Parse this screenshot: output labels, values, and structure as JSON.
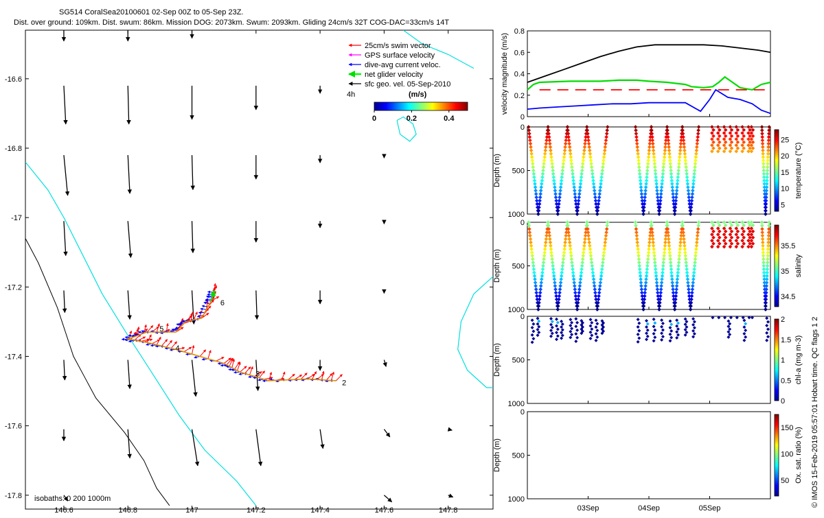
{
  "header": {
    "title_line1": "SG514 CoralSea20100601 02-Sep 00Z to 05-Sep 23Z.",
    "title_line2": "Dist. over ground: 109km. Dist. swum: 86km. Mission DOG: 2073km. Swum: 2093km. Gliding 24cm/s 32T COG-DAC=33cm/s 14T"
  },
  "side_label": "© IMOS 15-Feb-2019 05:57:01 Hobart time. QC flags 1  2",
  "chart_data": [
    {
      "type": "scatter",
      "role": "map",
      "x_ticks": [
        "146.6",
        "146.8",
        "147",
        "147.2",
        "147.4",
        "147.6",
        "147.8"
      ],
      "y_ticks": [
        "-16.6",
        "-16.8",
        "-17",
        "-17.2",
        "-17.4",
        "-17.6",
        "-17.8"
      ],
      "xlim": [
        146.48,
        147.94
      ],
      "ylim": [
        -17.84,
        -16.46
      ],
      "legend": [
        {
          "label": "25cm/s swim vector",
          "color": "#ff0000"
        },
        {
          "label": "GPS surface velocity",
          "color": "#ff00ff"
        },
        {
          "label": "dive-avg current veloc.",
          "color": "#0000ff"
        },
        {
          "label": "net glider velocity",
          "color": "#00ff00"
        },
        {
          "label": "sfc geo. vel. 05-Sep-2010",
          "color": "#000000"
        }
      ],
      "legend_note": "4h",
      "colorbar": {
        "label": "(m/s)",
        "ticks": [
          "0",
          "0.2",
          "0.4"
        ],
        "range": [
          0,
          0.5
        ]
      },
      "isobaths_label": "isobaths: 0   200  1000m",
      "track_labels": [
        {
          "text": "2",
          "lon": 147.46,
          "lat": -17.475
        },
        {
          "text": "3",
          "lon": 147.19,
          "lat": -17.45
        },
        {
          "text": "4",
          "lon": 146.94,
          "lat": -17.375
        },
        {
          "text": "5",
          "lon": 146.89,
          "lat": -17.32
        },
        {
          "text": "6",
          "lon": 147.08,
          "lat": -17.245
        }
      ],
      "track": [
        [
          147.45,
          -17.47
        ],
        [
          147.36,
          -17.465
        ],
        [
          147.24,
          -17.47
        ],
        [
          147.15,
          -17.445
        ],
        [
          147.1,
          -17.42
        ],
        [
          146.95,
          -17.38
        ],
        [
          146.86,
          -17.36
        ],
        [
          146.8,
          -17.35
        ],
        [
          146.86,
          -17.33
        ],
        [
          146.95,
          -17.33
        ],
        [
          146.98,
          -17.3
        ],
        [
          147.03,
          -17.29
        ],
        [
          147.06,
          -17.24
        ],
        [
          147.07,
          -17.21
        ]
      ],
      "current_field": [
        {
          "lon": 146.6,
          "lat": -16.45,
          "u": 0.0,
          "v": -0.15
        },
        {
          "lon": 146.8,
          "lat": -16.45,
          "u": 0.0,
          "v": -0.15
        },
        {
          "lon": 147.0,
          "lat": -16.45,
          "u": 0.0,
          "v": -0.12
        },
        {
          "lon": 146.6,
          "lat": -16.62,
          "u": 0.02,
          "v": -0.4
        },
        {
          "lon": 146.8,
          "lat": -16.62,
          "u": 0.01,
          "v": -0.4
        },
        {
          "lon": 147.0,
          "lat": -16.62,
          "u": 0.0,
          "v": -0.35
        },
        {
          "lon": 147.2,
          "lat": -16.62,
          "u": 0.0,
          "v": -0.25
        },
        {
          "lon": 147.4,
          "lat": -16.62,
          "u": 0.0,
          "v": -0.08
        },
        {
          "lon": 146.6,
          "lat": -16.82,
          "u": 0.04,
          "v": -0.42
        },
        {
          "lon": 146.8,
          "lat": -16.82,
          "u": 0.02,
          "v": -0.4
        },
        {
          "lon": 147.0,
          "lat": -16.82,
          "u": 0.01,
          "v": -0.36
        },
        {
          "lon": 147.2,
          "lat": -16.82,
          "u": 0.0,
          "v": -0.25
        },
        {
          "lon": 147.4,
          "lat": -16.82,
          "u": 0.0,
          "v": -0.08
        },
        {
          "lon": 147.6,
          "lat": -16.82,
          "u": 0.0,
          "v": -0.03
        },
        {
          "lon": 146.6,
          "lat": -17.01,
          "u": 0.02,
          "v": -0.36
        },
        {
          "lon": 146.8,
          "lat": -17.01,
          "u": 0.03,
          "v": -0.38
        },
        {
          "lon": 147.0,
          "lat": -17.01,
          "u": 0.01,
          "v": -0.33
        },
        {
          "lon": 147.2,
          "lat": -17.01,
          "u": 0.0,
          "v": -0.22
        },
        {
          "lon": 147.4,
          "lat": -17.01,
          "u": 0.0,
          "v": -0.07
        },
        {
          "lon": 147.6,
          "lat": -17.01,
          "u": 0.0,
          "v": -0.03
        },
        {
          "lon": 146.6,
          "lat": -17.21,
          "u": 0.01,
          "v": -0.23
        },
        {
          "lon": 146.8,
          "lat": -17.21,
          "u": 0.02,
          "v": -0.3
        },
        {
          "lon": 147.0,
          "lat": -17.21,
          "u": 0.02,
          "v": -0.35
        },
        {
          "lon": 147.2,
          "lat": -17.21,
          "u": 0.01,
          "v": -0.3
        },
        {
          "lon": 147.4,
          "lat": -17.21,
          "u": 0.0,
          "v": -0.14
        },
        {
          "lon": 147.6,
          "lat": -17.21,
          "u": 0.0,
          "v": -0.03
        },
        {
          "lon": 146.6,
          "lat": -17.41,
          "u": 0.01,
          "v": -0.21
        },
        {
          "lon": 146.8,
          "lat": -17.41,
          "u": 0.02,
          "v": -0.3
        },
        {
          "lon": 147.0,
          "lat": -17.41,
          "u": 0.04,
          "v": -0.38
        },
        {
          "lon": 147.2,
          "lat": -17.41,
          "u": 0.02,
          "v": -0.32
        },
        {
          "lon": 147.4,
          "lat": -17.41,
          "u": 0.0,
          "v": -0.11
        },
        {
          "lon": 147.6,
          "lat": -17.41,
          "u": 0.02,
          "v": -0.07
        },
        {
          "lon": 146.6,
          "lat": -17.61,
          "u": 0.0,
          "v": -0.12
        },
        {
          "lon": 146.8,
          "lat": -17.61,
          "u": 0.02,
          "v": -0.3
        },
        {
          "lon": 147.0,
          "lat": -17.61,
          "u": 0.06,
          "v": -0.38
        },
        {
          "lon": 147.2,
          "lat": -17.61,
          "u": 0.05,
          "v": -0.38
        },
        {
          "lon": 147.4,
          "lat": -17.61,
          "u": 0.03,
          "v": -0.2
        },
        {
          "lon": 147.6,
          "lat": -17.61,
          "u": 0.06,
          "v": -0.08
        },
        {
          "lon": 147.8,
          "lat": -17.61,
          "u": 0.04,
          "v": -0.01
        },
        {
          "lon": 146.6,
          "lat": -17.8,
          "u": 0.04,
          "v": -0.06
        },
        {
          "lon": 147.6,
          "lat": -17.8,
          "u": 0.08,
          "v": -0.07
        },
        {
          "lon": 147.8,
          "lat": -17.8,
          "u": 0.05,
          "v": -0.02
        }
      ],
      "coastline_0m": [
        [
          146.48,
          -16.84
        ],
        [
          146.55,
          -16.92
        ],
        [
          146.6,
          -17.0
        ],
        [
          146.66,
          -17.11
        ],
        [
          146.72,
          -17.22
        ],
        [
          146.8,
          -17.34
        ],
        [
          146.87,
          -17.44
        ],
        [
          146.96,
          -17.57
        ],
        [
          147.04,
          -17.67
        ],
        [
          147.14,
          -17.76
        ],
        [
          147.2,
          -17.83
        ]
      ],
      "isobath_1000m": [
        [
          146.48,
          -17.06
        ],
        [
          146.52,
          -17.13
        ],
        [
          146.58,
          -17.26
        ],
        [
          146.63,
          -17.4
        ],
        [
          146.7,
          -17.52
        ],
        [
          146.79,
          -17.62
        ],
        [
          146.85,
          -17.7
        ],
        [
          146.89,
          -17.78
        ],
        [
          146.93,
          -17.83
        ]
      ],
      "cyan_features": [
        [
          [
            147.64,
            -16.72
          ],
          [
            147.65,
            -16.76
          ],
          [
            147.68,
            -16.78
          ],
          [
            147.7,
            -16.76
          ],
          [
            147.69,
            -16.73
          ],
          [
            147.66,
            -16.71
          ],
          [
            147.64,
            -16.72
          ]
        ],
        [
          [
            147.88,
            -16.57
          ],
          [
            147.8,
            -16.53
          ],
          [
            147.72,
            -16.5
          ],
          [
            147.66,
            -16.46
          ]
        ],
        [
          [
            147.94,
            -17.17
          ],
          [
            147.88,
            -17.22
          ],
          [
            147.84,
            -17.3
          ],
          [
            147.83,
            -17.38
          ],
          [
            147.86,
            -17.44
          ],
          [
            147.92,
            -17.49
          ],
          [
            147.94,
            -17.49
          ]
        ]
      ]
    },
    {
      "type": "line",
      "role": "velocity_panel",
      "ylabel": "velocity magnitude (m/s)",
      "ylim": [
        0,
        0.8
      ],
      "y_ticks": [
        "0",
        "0.2",
        "0.4",
        "0.6",
        "0.8"
      ],
      "xlim": [
        2.0,
        6.0
      ],
      "series": [
        {
          "color": "#000000",
          "x": [
            2.0,
            2.3,
            2.6,
            2.9,
            3.2,
            3.5,
            3.8,
            4.1,
            4.3,
            4.5,
            4.7,
            4.9,
            5.2,
            5.5,
            5.8,
            6.0
          ],
          "values": [
            0.32,
            0.38,
            0.44,
            0.5,
            0.56,
            0.61,
            0.65,
            0.67,
            0.67,
            0.67,
            0.67,
            0.67,
            0.66,
            0.64,
            0.62,
            0.6
          ]
        },
        {
          "color": "#00dd00",
          "x": [
            2.0,
            2.1,
            2.2,
            2.7,
            2.9,
            3.2,
            3.5,
            3.8,
            4.0,
            4.3,
            4.6,
            4.7,
            4.9,
            5.05,
            5.15,
            5.25,
            5.35,
            5.5,
            5.7,
            5.85,
            6.0
          ],
          "values": [
            0.25,
            0.3,
            0.32,
            0.33,
            0.33,
            0.33,
            0.34,
            0.34,
            0.33,
            0.32,
            0.3,
            0.28,
            0.27,
            0.28,
            0.32,
            0.37,
            0.33,
            0.27,
            0.25,
            0.3,
            0.32
          ]
        },
        {
          "color": "#ff0000",
          "x": [
            2.2,
            2.9,
            3.25,
            3.5,
            3.95,
            4.7,
            5.0,
            5.5,
            5.75,
            6.0
          ],
          "values": [
            0.25,
            0.25,
            0.25,
            0.25,
            0.25,
            0.25,
            0.25,
            0.25,
            0.25,
            0.25
          ]
        },
        {
          "color": "#0000ff",
          "x": [
            2.0,
            2.2,
            2.5,
            2.8,
            3.1,
            3.4,
            3.7,
            4.0,
            4.3,
            4.6,
            4.85,
            5.0,
            5.1,
            5.3,
            5.5,
            5.7,
            5.85,
            6.0
          ],
          "values": [
            0.07,
            0.08,
            0.09,
            0.1,
            0.11,
            0.12,
            0.12,
            0.13,
            0.13,
            0.13,
            0.05,
            0.16,
            0.25,
            0.18,
            0.16,
            0.12,
            0.06,
            0.03
          ]
        }
      ]
    },
    {
      "type": "scatter",
      "role": "section_temperature",
      "ylabel": "Depth (m)",
      "y_ticks": [
        "0",
        "500",
        "1000"
      ],
      "ylim": [
        0,
        1000
      ],
      "colorbar_label": "temperature (°C)",
      "colorbar_ticks": [
        "5",
        "10",
        "15",
        "20",
        "25"
      ],
      "colorbar_range": [
        3,
        28
      ]
    },
    {
      "type": "scatter",
      "role": "section_salinity",
      "ylabel": "Depth (m)",
      "y_ticks": [
        "0",
        "500",
        "1000"
      ],
      "ylim": [
        0,
        1000
      ],
      "colorbar_label": "salinity",
      "colorbar_ticks": [
        "34.5",
        "35",
        "35.5"
      ],
      "colorbar_range": [
        34.3,
        35.9
      ]
    },
    {
      "type": "scatter",
      "role": "section_chla",
      "ylabel": "Depth (m)",
      "y_ticks": [
        "0",
        "500",
        "1000"
      ],
      "ylim": [
        0,
        1000
      ],
      "colorbar_label": "chl-a (mg m-3)",
      "colorbar_ticks": [
        "0",
        "0.5",
        "1",
        "1.5",
        "2"
      ],
      "colorbar_range": [
        0,
        2
      ]
    },
    {
      "type": "scatter",
      "role": "section_oxygen",
      "ylabel": "Depth (m)",
      "y_ticks": [
        "0",
        "500",
        "1000"
      ],
      "ylim": [
        0,
        1000
      ],
      "colorbar_label": "Ox. sat. ratio (%)",
      "colorbar_ticks": [
        "50",
        "100",
        "150"
      ],
      "colorbar_range": [
        20,
        175
      ],
      "x_ticks": [
        "03Sep",
        "04Sep",
        "05Sep"
      ],
      "x_tick_values": [
        3.0,
        4.0,
        5.0
      ]
    }
  ],
  "dives": [
    {
      "start": 2.02,
      "end": 2.34
    },
    {
      "start": 2.34,
      "end": 2.66
    },
    {
      "start": 2.66,
      "end": 2.98
    },
    {
      "start": 2.98,
      "end": 3.32
    },
    {
      "start": 3.78,
      "end": 4.04
    },
    {
      "start": 4.04,
      "end": 4.3
    },
    {
      "start": 4.3,
      "end": 4.55
    },
    {
      "start": 4.55,
      "end": 4.82
    },
    {
      "start": 5.86,
      "end": 5.98
    }
  ],
  "shallow_dives": [
    5.05,
    5.15,
    5.25,
    5.35,
    5.45,
    5.55,
    5.65,
    5.7
  ],
  "chla_casts": [
    2.09,
    2.18,
    2.4,
    2.49,
    2.57,
    2.72,
    2.81,
    2.9,
    3.05,
    3.14,
    3.24,
    3.83,
    3.97,
    4.09,
    4.22,
    4.36,
    4.47,
    4.61,
    4.74,
    5.32,
    5.58,
    5.95
  ]
}
